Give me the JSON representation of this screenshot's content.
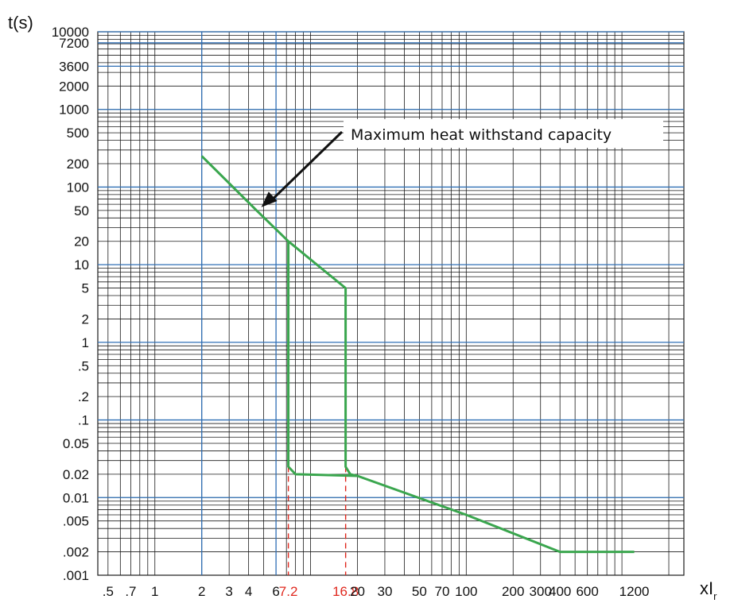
{
  "chart_data": {
    "type": "line",
    "title": "",
    "ylabel": "t(s)",
    "xlabel": {
      "base": "xI",
      "subscript": "r"
    },
    "x_scale": "log",
    "y_scale": "log",
    "xlim": [
      0.43,
      2500
    ],
    "ylim": [
      0.001,
      10000
    ],
    "grid": true,
    "x_ticks": [
      {
        "value": 0.5,
        "label": ".5"
      },
      {
        "value": 0.7,
        "label": ".7"
      },
      {
        "value": 1,
        "label": "1"
      },
      {
        "value": 2,
        "label": "2"
      },
      {
        "value": 3,
        "label": "3"
      },
      {
        "value": 4,
        "label": "4"
      },
      {
        "value": 6,
        "label": "6"
      },
      {
        "value": 7.2,
        "label": "7.2",
        "highlight": true
      },
      {
        "value": 16.8,
        "label": "16.8",
        "highlight": true
      },
      {
        "value": 20,
        "label": "20"
      },
      {
        "value": 30,
        "label": "30"
      },
      {
        "value": 50,
        "label": "50"
      },
      {
        "value": 70,
        "label": "70"
      },
      {
        "value": 100,
        "label": "100"
      },
      {
        "value": 200,
        "label": "200"
      },
      {
        "value": 300,
        "label": "300"
      },
      {
        "value": 400,
        "label": "400"
      },
      {
        "value": 600,
        "label": "600"
      },
      {
        "value": 1200,
        "label": "1200"
      }
    ],
    "y_ticks": [
      {
        "value": 10000,
        "label": "10000"
      },
      {
        "value": 7200,
        "label": "7200"
      },
      {
        "value": 3600,
        "label": "3600"
      },
      {
        "value": 2000,
        "label": "2000"
      },
      {
        "value": 1000,
        "label": "1000"
      },
      {
        "value": 500,
        "label": "500"
      },
      {
        "value": 200,
        "label": "200"
      },
      {
        "value": 100,
        "label": "100"
      },
      {
        "value": 50,
        "label": "50"
      },
      {
        "value": 20,
        "label": "20"
      },
      {
        "value": 10,
        "label": "10"
      },
      {
        "value": 5,
        "label": "5"
      },
      {
        "value": 2,
        "label": "2"
      },
      {
        "value": 1,
        "label": "1"
      },
      {
        "value": 0.5,
        "label": ".5"
      },
      {
        "value": 0.2,
        "label": ".2"
      },
      {
        "value": 0.1,
        "label": ".1"
      },
      {
        "value": 0.05,
        "label": "0.05"
      },
      {
        "value": 0.02,
        "label": "0.02"
      },
      {
        "value": 0.01,
        "label": "0.01"
      },
      {
        "value": 0.005,
        "label": ".005"
      },
      {
        "value": 0.002,
        "label": ".002"
      },
      {
        "value": 0.001,
        "label": ".001"
      }
    ],
    "series": [
      {
        "color": "#3aa64e",
        "points": [
          [
            2,
            250
          ],
          [
            4.5,
            50
          ],
          [
            7.2,
            20
          ],
          [
            16.8,
            5
          ],
          [
            16.8,
            0.025
          ],
          [
            18,
            0.02
          ],
          [
            20,
            0.019
          ],
          [
            100,
            0.006
          ],
          [
            400,
            0.002
          ],
          [
            500,
            0.002
          ],
          [
            1200,
            0.002
          ]
        ],
        "branch": [
          [
            7.2,
            20
          ],
          [
            7.2,
            0.025
          ],
          [
            8,
            0.02
          ],
          [
            20,
            0.019
          ]
        ]
      }
    ],
    "markers": [
      {
        "x": 7.2,
        "y_top": 0.025,
        "color": "#e0281e",
        "style": "dashed"
      },
      {
        "x": 16.8,
        "y_top": 0.025,
        "color": "#e0281e",
        "style": "dashed"
      }
    ],
    "blue_vlines": [
      2,
      6
    ],
    "blue_hlines": [
      10000,
      7200,
      3600,
      1000,
      100,
      10,
      1,
      0.1,
      0.01
    ],
    "annotations": [
      {
        "text": "Maximum heat withstand capacity",
        "point_x": 4.5,
        "point_y": 50
      }
    ]
  }
}
